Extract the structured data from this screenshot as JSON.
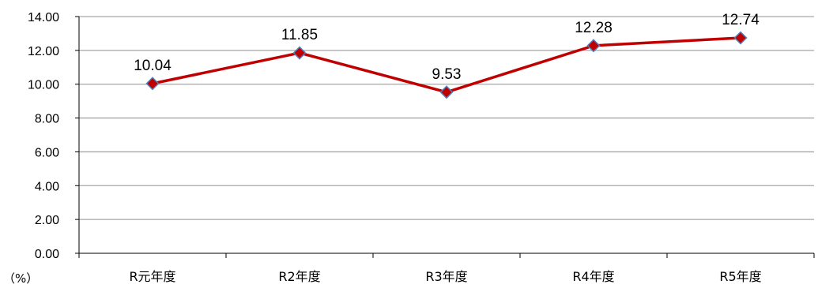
{
  "chart_data": {
    "type": "line",
    "categories": [
      "R元年度",
      "R2年度",
      "R3年度",
      "R4年度",
      "R5年度"
    ],
    "series": [
      {
        "values": [
          10.04,
          11.85,
          9.53,
          12.28,
          12.74
        ]
      }
    ],
    "data_labels": [
      "10.04",
      "11.85",
      "9.53",
      "12.28",
      "12.74"
    ],
    "yticks": [
      "0.00",
      "2.00",
      "4.00",
      "6.00",
      "8.00",
      "10.00",
      "12.00",
      "14.00"
    ],
    "ylim": [
      0,
      14
    ],
    "ylabel": "（%）",
    "grid": true,
    "legend": "none",
    "colors": {
      "line": "#c00000",
      "marker_fill": "#c00000",
      "marker_edge": "#4f81bd",
      "grid": "#a6a6a6",
      "axis": "#000000"
    }
  }
}
